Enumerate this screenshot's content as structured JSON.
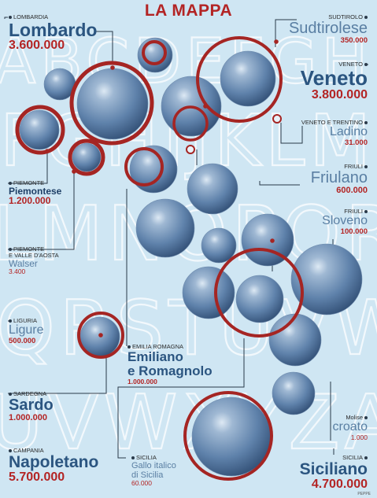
{
  "title": "LA MAPPA",
  "background_letters": "ABCDEFGHIJKLMNOPQRSTUVWXYZ",
  "colors": {
    "background": "#cfe6f3",
    "ring": "#a52523",
    "sphere": "#5b7fa8",
    "name": "#2b5580",
    "number": "#b32424"
  },
  "labels": [
    {
      "id": "lombardia",
      "region": "LOMBARDIA",
      "name": "Lombardo",
      "value": "3.600.000"
    },
    {
      "id": "sudtirolo",
      "region": "SUDTIROLO",
      "name": "Sudtirolese",
      "value": "350.000"
    },
    {
      "id": "veneto",
      "region": "VENETO",
      "name": "Veneto",
      "value": "3.800.000"
    },
    {
      "id": "ladino",
      "region": "VENETO E TRENTINO",
      "name": "Ladino",
      "value": "31.000"
    },
    {
      "id": "friulano",
      "region": "FRIULI",
      "name": "Friulano",
      "value": "600.000"
    },
    {
      "id": "sloveno",
      "region": "FRIULI",
      "name": "Sloveno",
      "value": "100.000"
    },
    {
      "id": "piemontese",
      "region": "PIEMONTE",
      "name": "Piemontese",
      "value": "1.200.000"
    },
    {
      "id": "walser",
      "region_lines": [
        "PIEMONTE",
        "E VALLE D'AOSTA"
      ],
      "name": "Walser",
      "value": "3.400"
    },
    {
      "id": "ligure",
      "region": "LIGURIA",
      "name": "Ligure",
      "value": "500.000"
    },
    {
      "id": "emiliano",
      "region": "EMILIA ROMAGNA",
      "name_lines": [
        "Emiliano",
        "e Romagnolo"
      ],
      "value": "1.000.000"
    },
    {
      "id": "sardo",
      "region": "SARDEGNA",
      "name": "Sardo",
      "value": "1.000.000"
    },
    {
      "id": "croato",
      "region": "Molise",
      "name": "croato",
      "value": "1.000"
    },
    {
      "id": "napoletano",
      "region": "CAMPANIA",
      "name": "Napoletano",
      "value": "5.700.000"
    },
    {
      "id": "gallo",
      "region": "SICILIA",
      "name_lines": [
        "Gallo italico",
        "di Sicilia"
      ],
      "value": "60.000"
    },
    {
      "id": "siciliano",
      "region": "SICILIA",
      "name": "Siciliano",
      "value": "4.700.000"
    }
  ],
  "credit": "PEPPE"
}
